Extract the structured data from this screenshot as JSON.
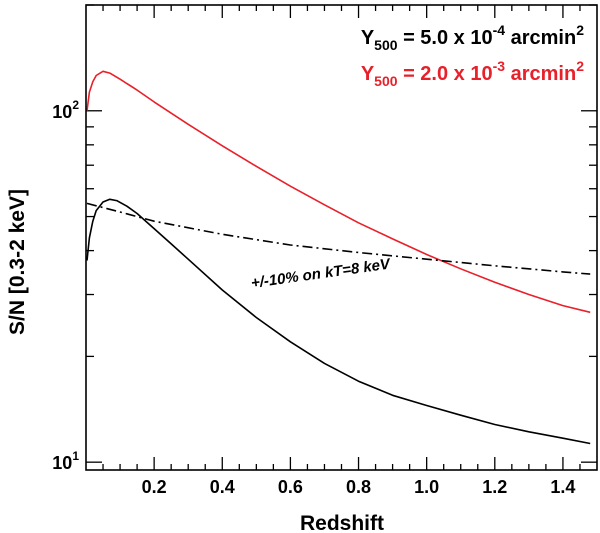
{
  "chart_data": {
    "type": "line",
    "title": "",
    "xlabel": "Redshift",
    "ylabel": "S/N [0.3-2 keV]",
    "xlim": [
      0.0,
      1.5
    ],
    "ylim": [
      9.5,
      200
    ],
    "yscale": "log",
    "xticks": [
      {
        "value": 0.2,
        "label": "0.2"
      },
      {
        "value": 0.4,
        "label": "0.4"
      },
      {
        "value": 0.6,
        "label": "0.6"
      },
      {
        "value": 0.8,
        "label": "0.8"
      },
      {
        "value": 1.0,
        "label": "1.0"
      },
      {
        "value": 1.2,
        "label": "1.2"
      },
      {
        "value": 1.4,
        "label": "1.4"
      }
    ],
    "yticks_major": [
      {
        "value": 10,
        "base": "10",
        "exp": "1"
      },
      {
        "value": 100,
        "base": "10",
        "exp": "2"
      }
    ],
    "series": [
      {
        "name": "Y500 = 5.0 x 10^-4 arcmin^2",
        "legend": {
          "prefix": "Y",
          "sub": "500",
          "mid": " = 5.0 x 10",
          "sup": "-4",
          "suffix": " arcmin",
          "sup2": "2"
        },
        "color": "#000000",
        "dash": "solid",
        "x": [
          0.003,
          0.01,
          0.02,
          0.03,
          0.05,
          0.07,
          0.09,
          0.12,
          0.15,
          0.2,
          0.25,
          0.3,
          0.4,
          0.5,
          0.6,
          0.7,
          0.8,
          0.9,
          1.0,
          1.1,
          1.2,
          1.3,
          1.4,
          1.48
        ],
        "y": [
          37.5,
          43.5,
          48.5,
          52.0,
          55.0,
          56.0,
          55.5,
          53.5,
          51.0,
          46.2,
          41.8,
          37.8,
          30.9,
          25.8,
          22.0,
          19.1,
          17.0,
          15.5,
          14.5,
          13.6,
          12.8,
          12.2,
          11.7,
          11.3
        ]
      },
      {
        "name": "Y500 = 2.0 x 10^-3 arcmin^2",
        "legend": {
          "prefix": "Y",
          "sub": "500",
          "mid": " = 2.0 x 10",
          "sup": "-3",
          "suffix": " arcmin",
          "sup2": "2"
        },
        "color": "#e8202a",
        "dash": "solid",
        "x": [
          0.003,
          0.01,
          0.02,
          0.03,
          0.05,
          0.07,
          0.1,
          0.15,
          0.2,
          0.3,
          0.4,
          0.5,
          0.6,
          0.7,
          0.8,
          0.9,
          1.0,
          1.1,
          1.2,
          1.3,
          1.4,
          1.48
        ],
        "y": [
          100.0,
          113.0,
          121.0,
          126.0,
          129.5,
          128.0,
          123.0,
          114.5,
          106.0,
          91.5,
          79.5,
          69.5,
          61.0,
          54.0,
          48.0,
          43.2,
          39.0,
          35.5,
          32.5,
          30.0,
          27.9,
          26.7
        ]
      },
      {
        "name": "+/-10% on kT=8 keV",
        "color": "#000000",
        "dash": "dashdot",
        "x": [
          0.003,
          0.1,
          0.2,
          0.4,
          0.6,
          0.8,
          1.0,
          1.2,
          1.4,
          1.48
        ],
        "y": [
          54.5,
          51.5,
          48.5,
          44.5,
          41.5,
          39.5,
          37.8,
          36.2,
          34.8,
          34.3
        ]
      }
    ],
    "annotations": [
      {
        "text": "+/-10% on kT=8 keV",
        "x": 0.69,
        "y": 37.8,
        "angle": -8
      }
    ],
    "grid": false,
    "legend_position": "top-right"
  }
}
